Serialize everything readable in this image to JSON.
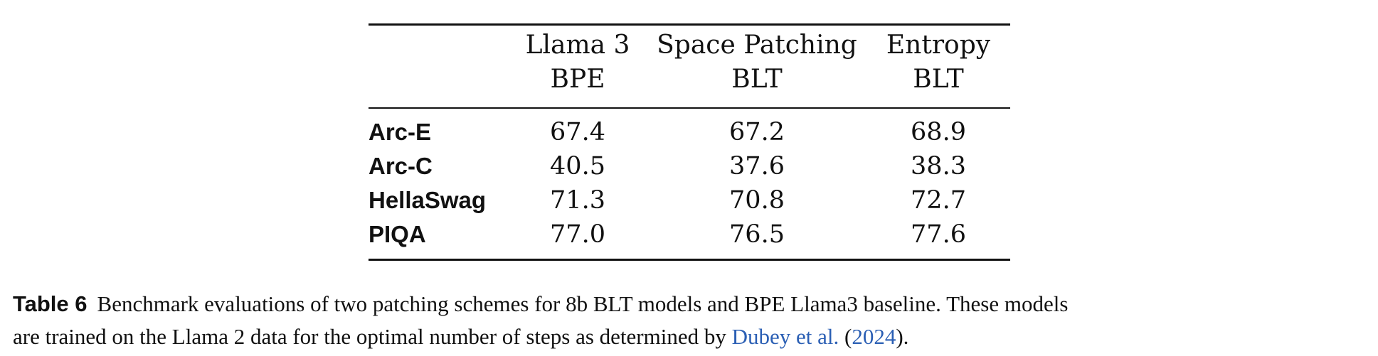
{
  "table": {
    "columns": [
      {
        "line1": "Llama 3",
        "line2": "BPE"
      },
      {
        "line1": "Space Patching",
        "line2": "BLT"
      },
      {
        "line1": "Entropy",
        "line2": "BLT"
      }
    ],
    "rows": [
      {
        "label": "Arc-E",
        "values": [
          "67.4",
          "67.2",
          "68.9"
        ]
      },
      {
        "label": "Arc-C",
        "values": [
          "40.5",
          "37.6",
          "38.3"
        ]
      },
      {
        "label": "HellaSwag",
        "values": [
          "71.3",
          "70.8",
          "72.7"
        ]
      },
      {
        "label": "PIQA",
        "values": [
          "77.0",
          "76.5",
          "77.6"
        ]
      }
    ]
  },
  "caption": {
    "label": "Table 6",
    "line1": "Benchmark evaluations of two patching schemes for 8b BLT models and BPE Llama3 baseline. These models",
    "line2_prefix": "are trained on the Llama 2 data for the optimal number of steps as determined by ",
    "citation_authors": "Dubey et al.",
    "citation_open": " (",
    "citation_year": "2024",
    "citation_close": ")."
  },
  "colors": {
    "text": "#111111",
    "citation": "#2b5fb4"
  }
}
